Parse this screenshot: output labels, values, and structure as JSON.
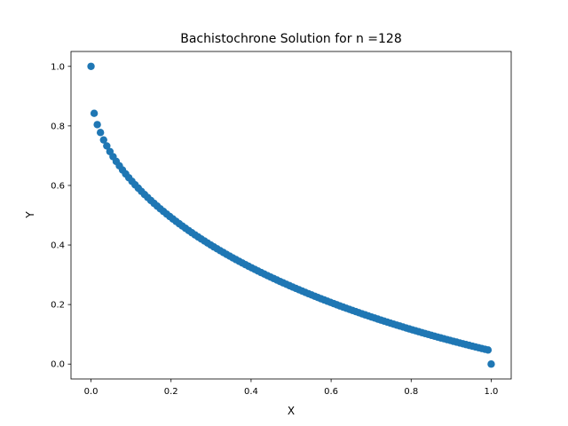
{
  "chart_data": {
    "type": "scatter",
    "title": "Bachistochrone Solution for n =128",
    "xlabel": "X",
    "ylabel": "Y",
    "xlim": [
      -0.05,
      1.05
    ],
    "ylim": [
      -0.05,
      1.05
    ],
    "grid": false,
    "marker_color": "#1f77b4",
    "x_ticks": [
      "0.0",
      "0.2",
      "0.4",
      "0.6",
      "0.8",
      "1.0"
    ],
    "y_ticks": [
      "0.0",
      "0.2",
      "0.4",
      "0.6",
      "0.8",
      "1.0"
    ],
    "n": 128,
    "points": [
      [
        0.0,
        1.0
      ],
      [
        0.0079,
        0.8422
      ],
      [
        0.0157,
        0.8044
      ],
      [
        0.0236,
        0.7777
      ],
      [
        0.0315,
        0.7529
      ],
      [
        0.0394,
        0.7327
      ],
      [
        0.0472,
        0.7138
      ],
      [
        0.0551,
        0.6967
      ],
      [
        0.063,
        0.6808
      ],
      [
        0.0709,
        0.666
      ],
      [
        0.0787,
        0.6519
      ],
      [
        0.0866,
        0.6386
      ],
      [
        0.0945,
        0.6259
      ],
      [
        0.1024,
        0.6137
      ],
      [
        0.1102,
        0.6021
      ],
      [
        0.1181,
        0.5909
      ],
      [
        0.126,
        0.58
      ],
      [
        0.1339,
        0.5695
      ],
      [
        0.1417,
        0.5594
      ],
      [
        0.1496,
        0.5495
      ],
      [
        0.1575,
        0.5399
      ],
      [
        0.1654,
        0.5306
      ],
      [
        0.1732,
        0.5215
      ],
      [
        0.1811,
        0.5127
      ],
      [
        0.189,
        0.504
      ],
      [
        0.1969,
        0.4956
      ],
      [
        0.2047,
        0.4873
      ],
      [
        0.2126,
        0.4792
      ],
      [
        0.2205,
        0.4713
      ],
      [
        0.2283,
        0.4636
      ],
      [
        0.2362,
        0.456
      ],
      [
        0.2441,
        0.4485
      ],
      [
        0.252,
        0.4412
      ],
      [
        0.2598,
        0.434
      ],
      [
        0.2677,
        0.427
      ],
      [
        0.2756,
        0.4201
      ],
      [
        0.2835,
        0.4133
      ],
      [
        0.2913,
        0.4066
      ],
      [
        0.2992,
        0.4
      ],
      [
        0.3071,
        0.3935
      ],
      [
        0.315,
        0.3872
      ],
      [
        0.3228,
        0.3809
      ],
      [
        0.3307,
        0.3748
      ],
      [
        0.3386,
        0.3687
      ],
      [
        0.3465,
        0.3627
      ],
      [
        0.3543,
        0.3568
      ],
      [
        0.3622,
        0.351
      ],
      [
        0.3701,
        0.3453
      ],
      [
        0.378,
        0.3397
      ],
      [
        0.3858,
        0.3341
      ],
      [
        0.3937,
        0.3286
      ],
      [
        0.4016,
        0.3232
      ],
      [
        0.4094,
        0.3179
      ],
      [
        0.4173,
        0.3126
      ],
      [
        0.4252,
        0.3074
      ],
      [
        0.4331,
        0.3023
      ],
      [
        0.4409,
        0.2972
      ],
      [
        0.4488,
        0.2922
      ],
      [
        0.4567,
        0.2873
      ],
      [
        0.4646,
        0.2824
      ],
      [
        0.4724,
        0.2775
      ],
      [
        0.4803,
        0.2728
      ],
      [
        0.4882,
        0.2681
      ],
      [
        0.4961,
        0.2634
      ],
      [
        0.5039,
        0.2588
      ],
      [
        0.5118,
        0.2542
      ],
      [
        0.5197,
        0.2497
      ],
      [
        0.5276,
        0.2453
      ],
      [
        0.5354,
        0.2409
      ],
      [
        0.5433,
        0.2365
      ],
      [
        0.5512,
        0.2322
      ],
      [
        0.5591,
        0.2279
      ],
      [
        0.5669,
        0.2237
      ],
      [
        0.5748,
        0.2195
      ],
      [
        0.5827,
        0.2154
      ],
      [
        0.5906,
        0.2113
      ],
      [
        0.5984,
        0.2073
      ],
      [
        0.6063,
        0.2033
      ],
      [
        0.6142,
        0.1993
      ],
      [
        0.622,
        0.1954
      ],
      [
        0.6299,
        0.1915
      ],
      [
        0.6378,
        0.1876
      ],
      [
        0.6457,
        0.1838
      ],
      [
        0.6535,
        0.1801
      ],
      [
        0.6614,
        0.1763
      ],
      [
        0.6693,
        0.1726
      ],
      [
        0.6772,
        0.169
      ],
      [
        0.685,
        0.1654
      ],
      [
        0.6929,
        0.1618
      ],
      [
        0.7008,
        0.1582
      ],
      [
        0.7087,
        0.1547
      ],
      [
        0.7165,
        0.1512
      ],
      [
        0.7244,
        0.1478
      ],
      [
        0.7323,
        0.1444
      ],
      [
        0.7402,
        0.141
      ],
      [
        0.748,
        0.1376
      ],
      [
        0.7559,
        0.1343
      ],
      [
        0.7638,
        0.131
      ],
      [
        0.7717,
        0.1278
      ],
      [
        0.7795,
        0.1245
      ],
      [
        0.7874,
        0.1213
      ],
      [
        0.7953,
        0.1181
      ],
      [
        0.8031,
        0.115
      ],
      [
        0.811,
        0.1119
      ],
      [
        0.8189,
        0.1088
      ],
      [
        0.8268,
        0.1057
      ],
      [
        0.8346,
        0.1027
      ],
      [
        0.8425,
        0.0997
      ],
      [
        0.8504,
        0.0967
      ],
      [
        0.8583,
        0.0937
      ],
      [
        0.8661,
        0.0908
      ],
      [
        0.874,
        0.0879
      ],
      [
        0.8819,
        0.085
      ],
      [
        0.8898,
        0.0822
      ],
      [
        0.8976,
        0.0794
      ],
      [
        0.9055,
        0.0766
      ],
      [
        0.9134,
        0.0738
      ],
      [
        0.9213,
        0.071
      ],
      [
        0.9291,
        0.0683
      ],
      [
        0.937,
        0.0656
      ],
      [
        0.9449,
        0.0629
      ],
      [
        0.9528,
        0.0602
      ],
      [
        0.9606,
        0.0576
      ],
      [
        0.9685,
        0.055
      ],
      [
        0.9764,
        0.0524
      ],
      [
        0.9843,
        0.0498
      ],
      [
        0.9921,
        0.0473
      ],
      [
        1.0,
        0.0
      ]
    ]
  }
}
